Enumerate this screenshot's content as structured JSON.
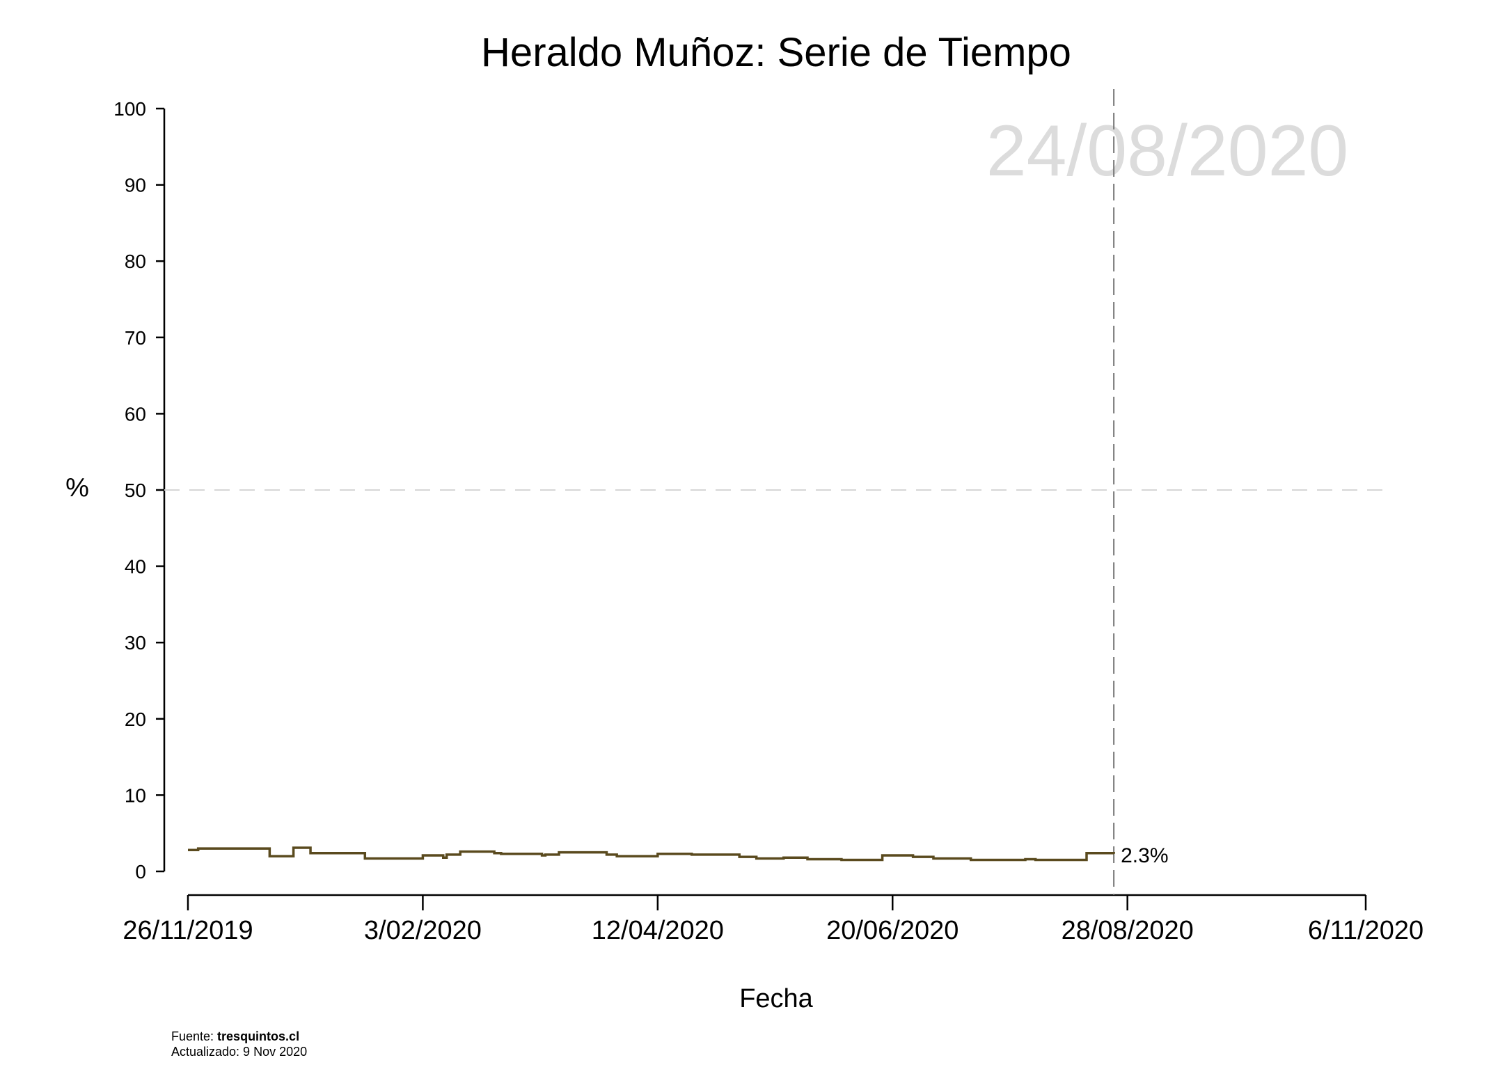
{
  "chart_data": {
    "type": "line",
    "title": "Heraldo Muñoz: Serie de Tiempo",
    "xlabel": "Fecha",
    "ylabel": "%",
    "ylim": [
      0,
      100
    ],
    "yticks": [
      0,
      10,
      20,
      30,
      40,
      50,
      60,
      70,
      80,
      90,
      100
    ],
    "xlim": [
      "2019-11-26",
      "2020-11-06"
    ],
    "xticks": [
      {
        "date": "2019-11-26",
        "label": "26/11/2019"
      },
      {
        "date": "2020-02-03",
        "label": "3/02/2020"
      },
      {
        "date": "2020-04-12",
        "label": "12/04/2020"
      },
      {
        "date": "2020-06-20",
        "label": "20/06/2020"
      },
      {
        "date": "2020-08-28",
        "label": "28/08/2020"
      },
      {
        "date": "2020-11-06",
        "label": "6/11/2020"
      }
    ],
    "reference_line_y": 50,
    "current_date_line": "2020-08-24",
    "current_date_label": "24/08/2020",
    "grid": false,
    "series": [
      {
        "color": "#5a4a1e",
        "step": true,
        "x": [
          "2019-11-26",
          "2019-11-29",
          "2019-12-20",
          "2019-12-27",
          "2020-01-01",
          "2020-01-05",
          "2020-01-17",
          "2020-01-20",
          "2020-02-03",
          "2020-02-09",
          "2020-02-10",
          "2020-02-14",
          "2020-02-24",
          "2020-02-26",
          "2020-03-09",
          "2020-03-10",
          "2020-03-14",
          "2020-03-28",
          "2020-03-31",
          "2020-04-12",
          "2020-04-22",
          "2020-04-28",
          "2020-05-06",
          "2020-05-11",
          "2020-05-19",
          "2020-05-26",
          "2020-06-05",
          "2020-06-17",
          "2020-06-26",
          "2020-07-02",
          "2020-07-13",
          "2020-07-29",
          "2020-08-01",
          "2020-08-14",
          "2020-08-16",
          "2020-08-24"
        ],
        "values": [
          2.8,
          3.0,
          2.0,
          3.1,
          2.4,
          2.4,
          1.7,
          1.7,
          2.1,
          1.8,
          2.2,
          2.6,
          2.4,
          2.3,
          2.1,
          2.2,
          2.5,
          2.2,
          2.0,
          2.3,
          2.2,
          2.2,
          1.9,
          1.7,
          1.8,
          1.6,
          1.5,
          2.1,
          1.9,
          1.7,
          1.5,
          1.6,
          1.5,
          1.5,
          2.4,
          2.3
        ]
      }
    ],
    "end_label": "2.3%"
  },
  "footer": {
    "source_prefix": "Fuente: ",
    "source_name": "tresquintos.cl",
    "updated": "Actualizado: 9 Nov 2020"
  }
}
